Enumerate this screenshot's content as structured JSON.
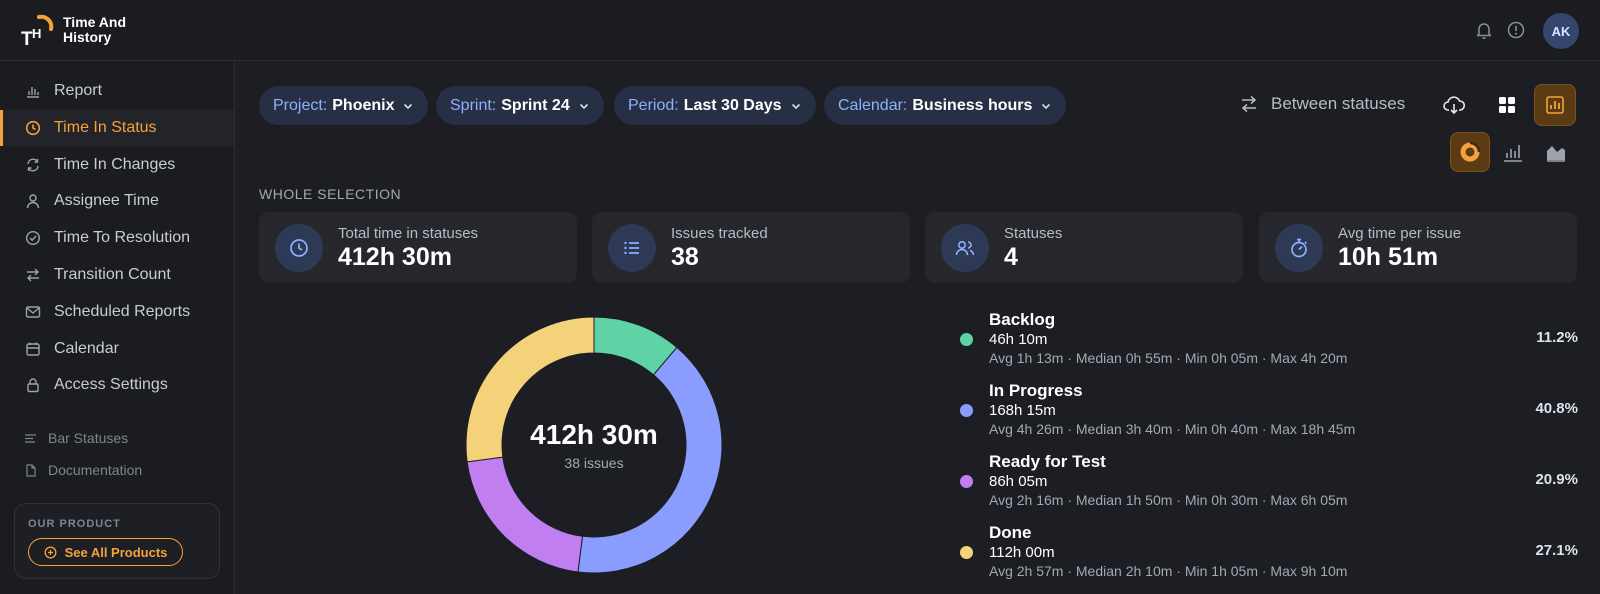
{
  "brand": {
    "line1": "Time And",
    "line2": "History",
    "logo_text": "TH"
  },
  "header": {
    "avatar_initials": "AK"
  },
  "sidebar": {
    "items": [
      {
        "label": "Report",
        "icon": "bar-chart-icon"
      },
      {
        "label": "Time In Status",
        "icon": "clock-icon",
        "active": true
      },
      {
        "label": "Time In Changes",
        "icon": "refresh-icon"
      },
      {
        "label": "Assignee Time",
        "icon": "user-icon"
      },
      {
        "label": "Time To Resolution",
        "icon": "check-circle-icon"
      },
      {
        "label": "Transition Count",
        "icon": "arrows-icon"
      },
      {
        "label": "Scheduled Reports",
        "icon": "mail-icon"
      },
      {
        "label": "Calendar",
        "icon": "calendar-icon"
      },
      {
        "label": "Access Settings",
        "icon": "lock-icon"
      }
    ],
    "sub_items": [
      {
        "label": "Bar Statuses",
        "icon": "lines-icon"
      },
      {
        "label": "Documentation",
        "icon": "document-icon"
      }
    ],
    "product": {
      "label": "OUR PRODUCT",
      "button": "See All Products"
    }
  },
  "filters": [
    {
      "key": "Project:",
      "value": "Phoenix"
    },
    {
      "key": "Sprint:",
      "value": "Sprint 24"
    },
    {
      "key": "Period:",
      "value": "Last 30 Days"
    },
    {
      "key": "Calendar:",
      "value": "Business hours"
    }
  ],
  "toolbar": {
    "between_label": "Between statuses"
  },
  "section_title": "WHOLE SELECTION",
  "stats": [
    {
      "label": "Total time in statuses",
      "value": "412h 30m",
      "icon": "clock-icon"
    },
    {
      "label": "Issues tracked",
      "value": "38",
      "icon": "list-icon"
    },
    {
      "label": "Statuses",
      "value": "4",
      "icon": "users-icon"
    },
    {
      "label": "Avg time per issue",
      "value": "10h 51m",
      "icon": "stopwatch-icon"
    }
  ],
  "donut": {
    "total": "412h 30m",
    "subtitle": "38 issues"
  },
  "statuses": [
    {
      "name": "Backlog",
      "total": "46h 10m",
      "stats": "Avg 1h 13m · Median 0h 55m · Min 0h 05m · Max 4h 20m",
      "pct": "11.2%",
      "pct_value": 11.2,
      "color": "#5fd3a6"
    },
    {
      "name": "In Progress",
      "total": "168h 15m",
      "stats": "Avg 4h 26m · Median 3h 40m · Min 0h 40m · Max 18h 45m",
      "pct": "40.8%",
      "pct_value": 40.8,
      "color": "#8b9cff"
    },
    {
      "name": "Ready for Test",
      "total": "86h 05m",
      "stats": "Avg 2h 16m · Median 1h 50m · Min 0h 30m · Max 6h 05m",
      "pct": "20.9%",
      "pct_value": 20.9,
      "color": "#c07ef0"
    },
    {
      "name": "Done",
      "total": "112h 00m",
      "stats": "Avg 2h 57m · Median 2h 10m · Min 1h 05m · Max 9h 10m",
      "pct": "27.1%",
      "pct_value": 27.1,
      "color": "#f4d27a"
    }
  ]
}
